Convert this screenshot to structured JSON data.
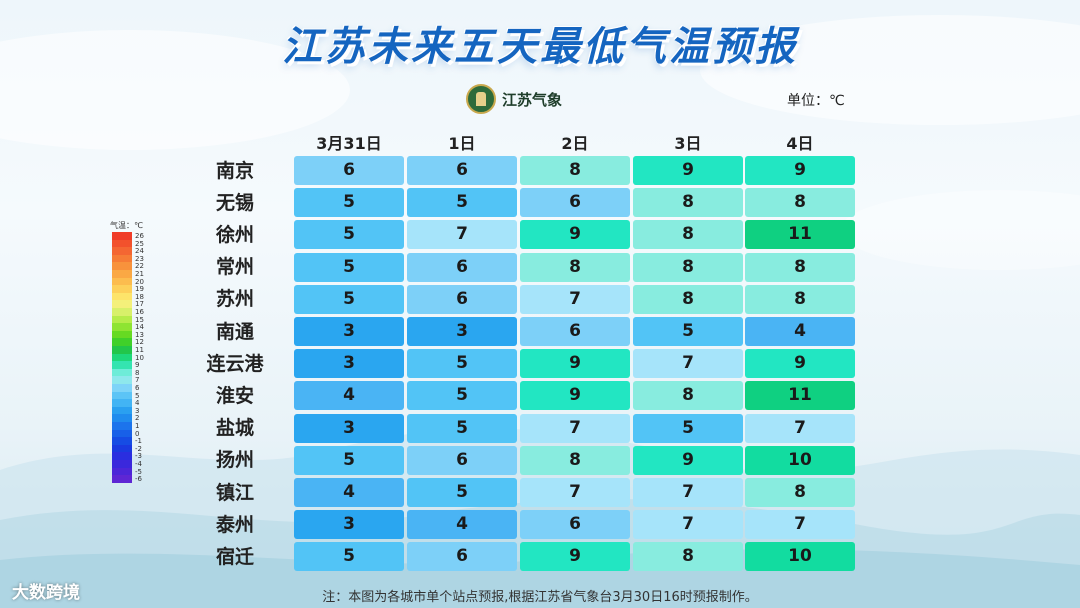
{
  "title": "江苏未来五天最低气温预报",
  "logo_text": "江苏气象",
  "unit": "单位：℃",
  "note": "注：本图为各城市单个站点预报,根据江苏省气象台3月30日16时预报制作。",
  "brand": "大数跨境",
  "chart_data": {
    "type": "table",
    "columns": [
      "3月31日",
      "1日",
      "2日",
      "3日",
      "4日"
    ],
    "rows": [
      {
        "city": "南京",
        "values": [
          6,
          6,
          8,
          9,
          9
        ]
      },
      {
        "city": "无锡",
        "values": [
          5,
          5,
          6,
          8,
          8
        ]
      },
      {
        "city": "徐州",
        "values": [
          5,
          7,
          9,
          8,
          11
        ]
      },
      {
        "city": "常州",
        "values": [
          5,
          6,
          8,
          8,
          8
        ]
      },
      {
        "city": "苏州",
        "values": [
          5,
          6,
          7,
          8,
          8
        ]
      },
      {
        "city": "南通",
        "values": [
          3,
          3,
          6,
          5,
          4
        ]
      },
      {
        "city": "连云港",
        "values": [
          3,
          5,
          9,
          7,
          9
        ]
      },
      {
        "city": "淮安",
        "values": [
          4,
          5,
          9,
          8,
          11
        ]
      },
      {
        "city": "盐城",
        "values": [
          3,
          5,
          7,
          5,
          7
        ]
      },
      {
        "city": "扬州",
        "values": [
          5,
          6,
          8,
          9,
          10
        ]
      },
      {
        "city": "镇江",
        "values": [
          4,
          5,
          7,
          7,
          8
        ]
      },
      {
        "city": "泰州",
        "values": [
          3,
          4,
          6,
          7,
          7
        ]
      },
      {
        "city": "宿迁",
        "values": [
          5,
          6,
          9,
          8,
          10
        ]
      }
    ],
    "cell_colors": {
      "3": "#2aa6f0",
      "4": "#4ab4f4",
      "5": "#52c4f6",
      "6": "#7dd0f8",
      "7": "#a6e4fa",
      "8": "#88ecdf",
      "9": "#22e6c2",
      "10": "#12dca0",
      "11": "#0fd081"
    },
    "legend": {
      "title": "气温：℃",
      "labels": [
        "26",
        "25",
        "24",
        "23",
        "22",
        "21",
        "20",
        "19",
        "18",
        "17",
        "16",
        "15",
        "14",
        "13",
        "12",
        "11",
        "10",
        "9",
        "8",
        "7",
        "6",
        "5",
        "4",
        "3",
        "2",
        "1",
        "0",
        "-1",
        "-2",
        "-3",
        "-4",
        "-5",
        "-6"
      ],
      "colors": [
        "#f03c28",
        "#f2512c",
        "#f46632",
        "#f67c36",
        "#f8923c",
        "#faa844",
        "#fcbc4e",
        "#fdd05a",
        "#fde46a",
        "#f4f07a",
        "#d8f06a",
        "#b6ec4a",
        "#8ee432",
        "#66da22",
        "#40d02a",
        "#22c64a",
        "#1ed87a",
        "#34e4b0",
        "#6eecd8",
        "#8ee8ec",
        "#7ed4f8",
        "#5cc4f6",
        "#42b4f4",
        "#2aa0f0",
        "#208cee",
        "#1c74ec",
        "#1860e8",
        "#164ce4",
        "#1a3ae0",
        "#2a2ee0",
        "#3a28dc",
        "#4c26d8",
        "#5e26d4"
      ]
    }
  }
}
